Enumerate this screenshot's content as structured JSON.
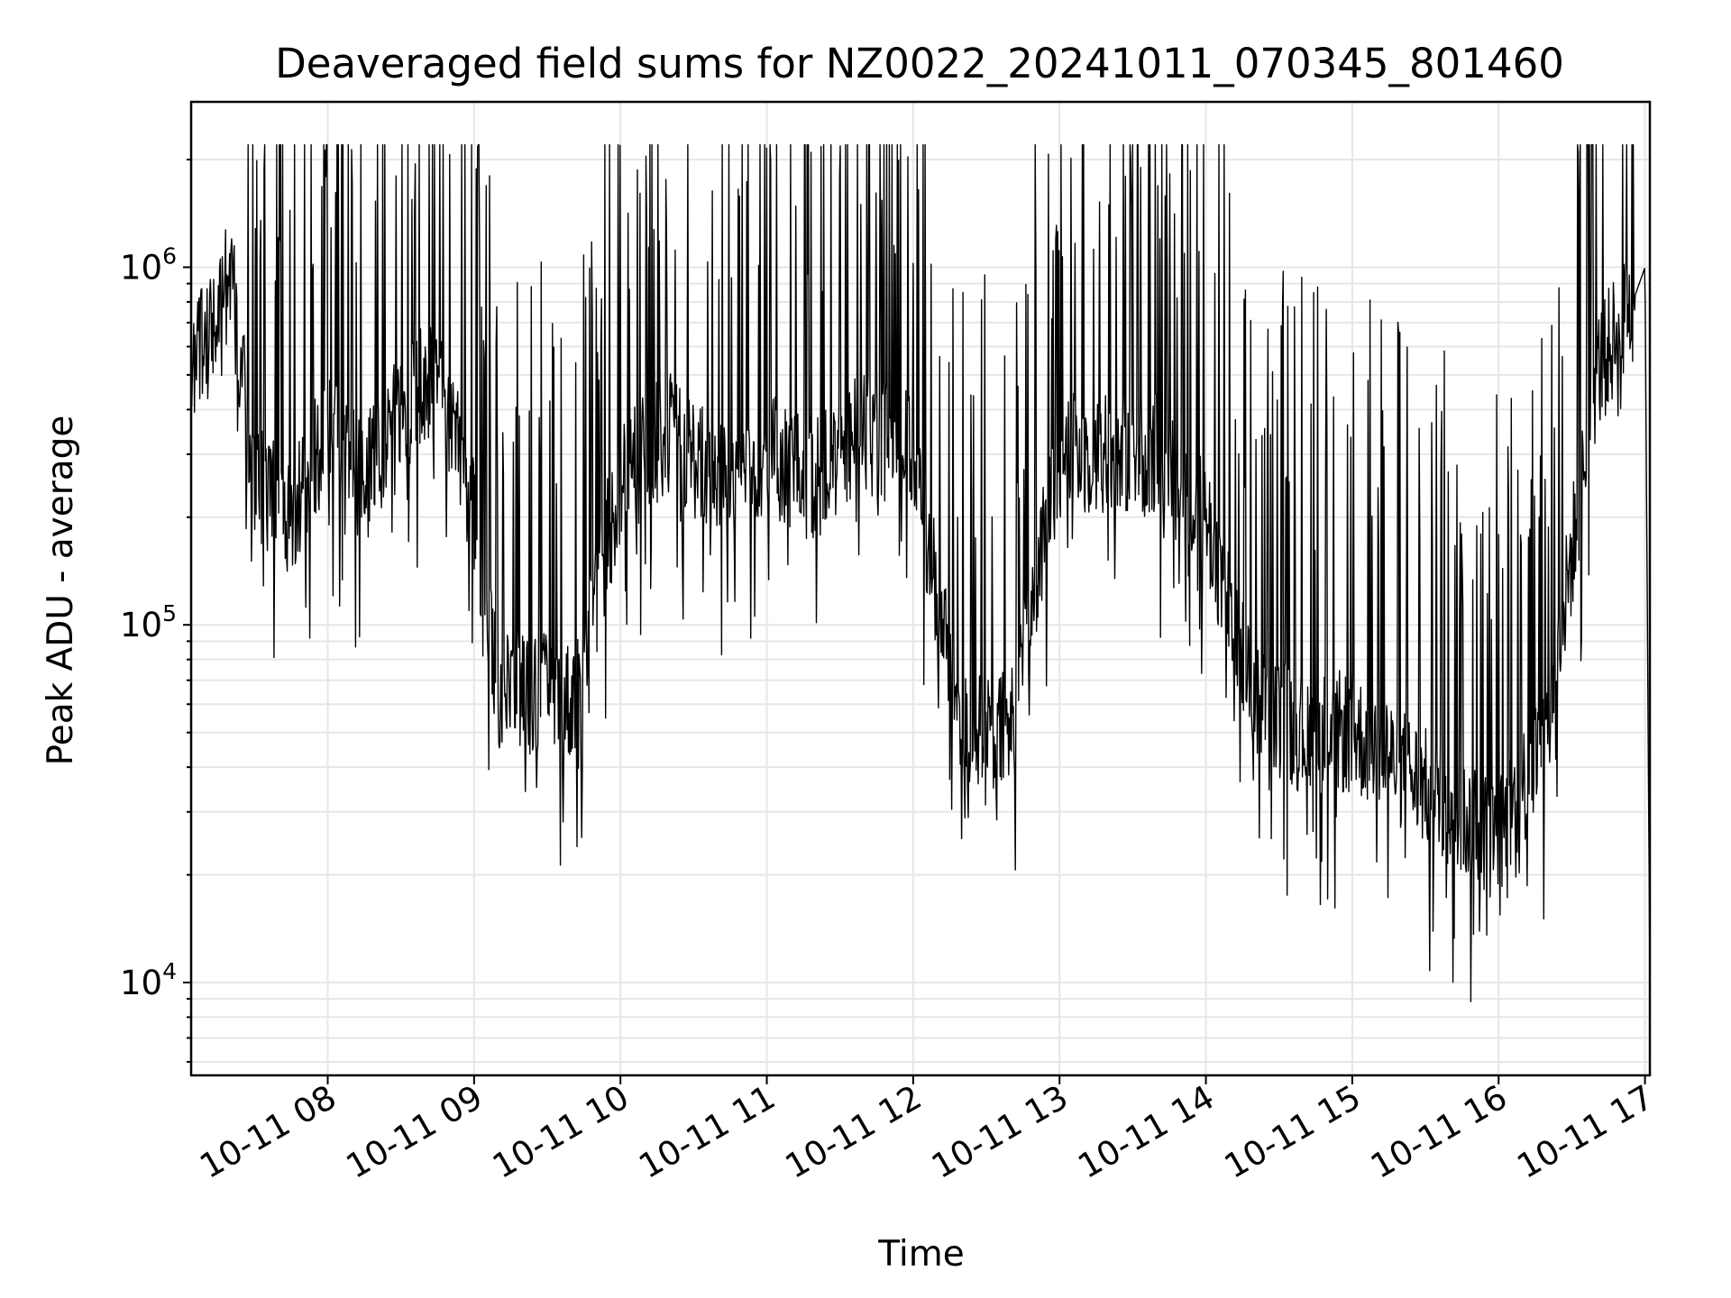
{
  "chart_data": {
    "type": "line",
    "title": "Deaveraged field sums for NZ0022_20241011_070345_801460",
    "xlabel": "Time",
    "ylabel": "Peak ADU - average",
    "yscale": "log",
    "xlim": [
      "2024-10-11 07:04",
      "2024-10-11 17:02"
    ],
    "ylim": [
      5500,
      2900000
    ],
    "grid": true,
    "line_color": "#000000",
    "x_ticks": [
      {
        "value": "2024-10-11 08:00",
        "label": "10-11 08"
      },
      {
        "value": "2024-10-11 09:00",
        "label": "10-11 09"
      },
      {
        "value": "2024-10-11 10:00",
        "label": "10-11 10"
      },
      {
        "value": "2024-10-11 11:00",
        "label": "10-11 11"
      },
      {
        "value": "2024-10-11 12:00",
        "label": "10-11 12"
      },
      {
        "value": "2024-10-11 13:00",
        "label": "10-11 13"
      },
      {
        "value": "2024-10-11 14:00",
        "label": "10-11 14"
      },
      {
        "value": "2024-10-11 15:00",
        "label": "10-11 15"
      },
      {
        "value": "2024-10-11 16:00",
        "label": "10-11 16"
      },
      {
        "value": "2024-10-11 17:00",
        "label": "10-11 17"
      }
    ],
    "y_ticks": [
      {
        "value": 10000,
        "base": "10",
        "exp": "4"
      },
      {
        "value": 100000,
        "base": "10",
        "exp": "5"
      },
      {
        "value": 1000000,
        "base": "10",
        "exp": "6"
      }
    ],
    "series": [
      {
        "x": [
          "2024-10-11 07:04",
          "2024-10-11 07:15",
          "2024-10-11 07:20",
          "2024-10-11 07:30",
          "2024-10-11 07:45",
          "2024-10-11 08:00",
          "2024-10-11 08:15",
          "2024-10-11 08:30",
          "2024-10-11 08:45",
          "2024-10-11 09:00",
          "2024-10-11 09:10",
          "2024-10-11 09:25",
          "2024-10-11 09:40",
          "2024-10-11 10:00",
          "2024-10-11 10:20",
          "2024-10-11 10:40",
          "2024-10-11 11:00",
          "2024-10-11 11:20",
          "2024-10-11 11:40",
          "2024-10-11 12:00",
          "2024-10-11 12:20",
          "2024-10-11 12:40",
          "2024-10-11 13:00",
          "2024-10-11 13:20",
          "2024-10-11 13:40",
          "2024-10-11 14:00",
          "2024-10-11 14:20",
          "2024-10-11 14:40",
          "2024-10-11 15:00",
          "2024-10-11 15:20",
          "2024-10-11 15:40",
          "2024-10-11 16:00",
          "2024-10-11 16:20",
          "2024-10-11 16:40",
          "2024-10-11 16:55",
          "2024-10-11 17:00",
          "2024-10-11 17:02"
        ],
        "y": [
          550000,
          650000,
          1000000,
          250000,
          200000,
          350000,
          250000,
          400000,
          500000,
          200000,
          65000,
          65000,
          60000,
          250000,
          350000,
          250000,
          300000,
          250000,
          350000,
          300000,
          50000,
          50000,
          300000,
          300000,
          300000,
          200000,
          60000,
          50000,
          50000,
          40000,
          30000,
          25000,
          50000,
          500000,
          800000,
          1000000,
          10000
        ]
      }
    ]
  }
}
